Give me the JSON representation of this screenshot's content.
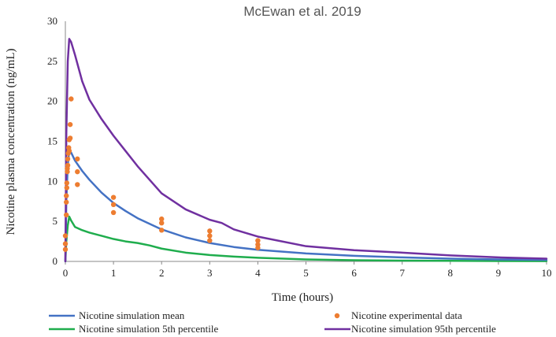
{
  "chart_data": {
    "type": "line",
    "title": "McEwan et al. 2019",
    "xlabel": "Time (hours)",
    "ylabel": "Nicotine plasma concentration (ng/mL)",
    "xlim": [
      0,
      10
    ],
    "ylim": [
      0,
      30
    ],
    "xticks": [
      0,
      1,
      2,
      3,
      4,
      5,
      6,
      7,
      8,
      9,
      10
    ],
    "yticks": [
      0,
      5,
      10,
      15,
      20,
      25,
      30
    ],
    "grid": false,
    "legend_position": "bottom",
    "series": [
      {
        "name": "Nicotine simulation mean",
        "kind": "line",
        "color": "#4472c4",
        "x": [
          0,
          0.02,
          0.05,
          0.08,
          0.12,
          0.2,
          0.35,
          0.5,
          0.75,
          1,
          1.25,
          1.5,
          2,
          2.5,
          3,
          3.5,
          4,
          5,
          6,
          7,
          8,
          9,
          10
        ],
        "y": [
          0,
          7.5,
          12.0,
          13.8,
          13.6,
          12.6,
          11.3,
          10.2,
          8.6,
          7.3,
          6.3,
          5.4,
          4.0,
          3.0,
          2.3,
          1.8,
          1.45,
          1.0,
          0.7,
          0.5,
          0.35,
          0.25,
          0.2
        ]
      },
      {
        "name": "Nicotine experimental data",
        "kind": "scatter",
        "color": "#ed7d31",
        "x": [
          0,
          0,
          0,
          0.02,
          0.02,
          0.02,
          0.03,
          0.03,
          0.04,
          0.04,
          0.05,
          0.05,
          0.06,
          0.07,
          0.08,
          0.08,
          0.1,
          0.1,
          0.12,
          0.25,
          0.25,
          0.25,
          1,
          1,
          1,
          2,
          2,
          2,
          3,
          3,
          3,
          4,
          4,
          4
        ],
        "y": [
          1.5,
          2.2,
          3.2,
          5.8,
          7.4,
          8.2,
          9.2,
          9.8,
          11.2,
          11.6,
          12.0,
          12.8,
          13.5,
          14.2,
          13.8,
          15.2,
          17.1,
          15.4,
          20.3,
          12.8,
          11.2,
          9.6,
          8.0,
          7.1,
          6.1,
          5.3,
          4.8,
          3.9,
          3.8,
          3.2,
          2.6,
          2.6,
          2.1,
          1.7
        ]
      },
      {
        "name": "Nicotine simulation 5th percentile",
        "kind": "line",
        "color": "#1fad4d",
        "x": [
          0,
          0.02,
          0.05,
          0.08,
          0.12,
          0.2,
          0.35,
          0.5,
          0.75,
          1,
          1.25,
          1.5,
          1.75,
          2,
          2.5,
          3,
          3.5,
          4,
          5,
          6,
          7,
          8,
          9,
          10
        ],
        "y": [
          0,
          2.5,
          4.5,
          5.6,
          5.1,
          4.3,
          3.9,
          3.6,
          3.2,
          2.8,
          2.5,
          2.3,
          2.0,
          1.6,
          1.1,
          0.8,
          0.6,
          0.45,
          0.25,
          0.15,
          0.1,
          0.07,
          0.05,
          0.04
        ]
      },
      {
        "name": "Nicotine simulation 95th percentile",
        "kind": "line",
        "color": "#7030a0",
        "x": [
          0,
          0.02,
          0.05,
          0.08,
          0.12,
          0.2,
          0.35,
          0.5,
          0.75,
          1,
          1.25,
          1.5,
          2,
          2.5,
          3,
          3.25,
          3.5,
          4,
          5,
          6,
          7,
          8,
          9,
          10
        ],
        "y": [
          0,
          16.0,
          25.0,
          27.8,
          27.4,
          25.8,
          22.5,
          20.2,
          17.8,
          15.7,
          13.8,
          11.9,
          8.5,
          6.5,
          5.2,
          4.8,
          4.0,
          3.1,
          1.9,
          1.4,
          1.1,
          0.75,
          0.5,
          0.35
        ]
      }
    ]
  }
}
